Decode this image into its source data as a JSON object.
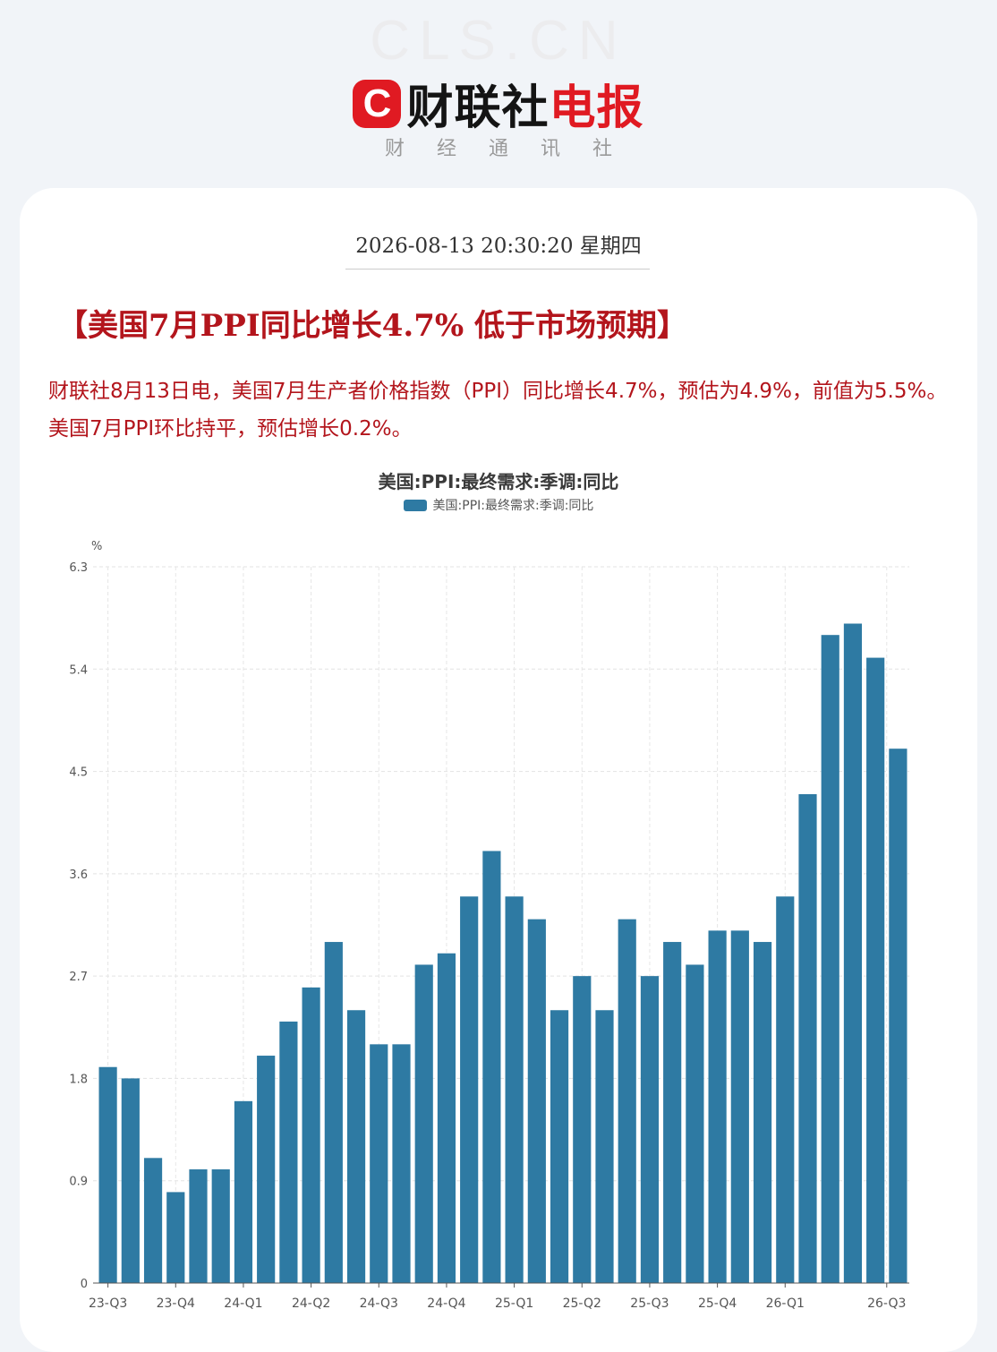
{
  "header": {
    "watermark": "CLS.CN",
    "logo_letter": "C",
    "brand_black": "财联社",
    "brand_red": "电报",
    "subtitle": "财经通讯社"
  },
  "article": {
    "datetime": "2026-08-13 20:30:20 星期四",
    "headline": "【美国7月PPI同比增长4.7% 低于市场预期】",
    "body": "财联社8月13日电，美国7月生产者价格指数（PPI）同比增长4.7%，预估为4.9%，前值为5.5%。美国7月PPI环比持平，预估增长0.2%。"
  },
  "colors": {
    "bar": "#2e7aa3",
    "headline": "#b3151c",
    "brand_red": "#e01a22"
  },
  "chart_data": {
    "type": "bar",
    "title": "美国:PPI:最终需求:季调:同比",
    "legend": "美国:PPI:最终需求:季调:同比",
    "ylabel": "%",
    "ylim": [
      0,
      6.3
    ],
    "yticks": [
      "0",
      "0.9",
      "1.8",
      "2.7",
      "3.6",
      "4.5",
      "5.4",
      "6.3"
    ],
    "grid": true,
    "xtick_labels": [
      "23-Q3",
      "23-Q4",
      "24-Q1",
      "24-Q2",
      "24-Q3",
      "24-Q4",
      "25-Q1",
      "25-Q2",
      "25-Q3",
      "25-Q4",
      "26-Q1",
      "26-Q3"
    ],
    "xtick_positions": [
      1,
      4,
      7,
      10,
      13,
      16,
      19,
      22,
      25,
      28,
      31,
      35.5
    ],
    "values": [
      1.9,
      1.8,
      1.1,
      0.8,
      1.0,
      1.0,
      1.6,
      2.0,
      2.3,
      2.6,
      3.0,
      2.4,
      2.1,
      2.1,
      2.8,
      2.9,
      3.4,
      3.8,
      3.4,
      3.2,
      2.4,
      2.7,
      2.4,
      3.2,
      2.7,
      3.0,
      2.8,
      3.1,
      3.1,
      3.0,
      3.4,
      4.3,
      5.7,
      5.8,
      5.5,
      4.7
    ]
  }
}
